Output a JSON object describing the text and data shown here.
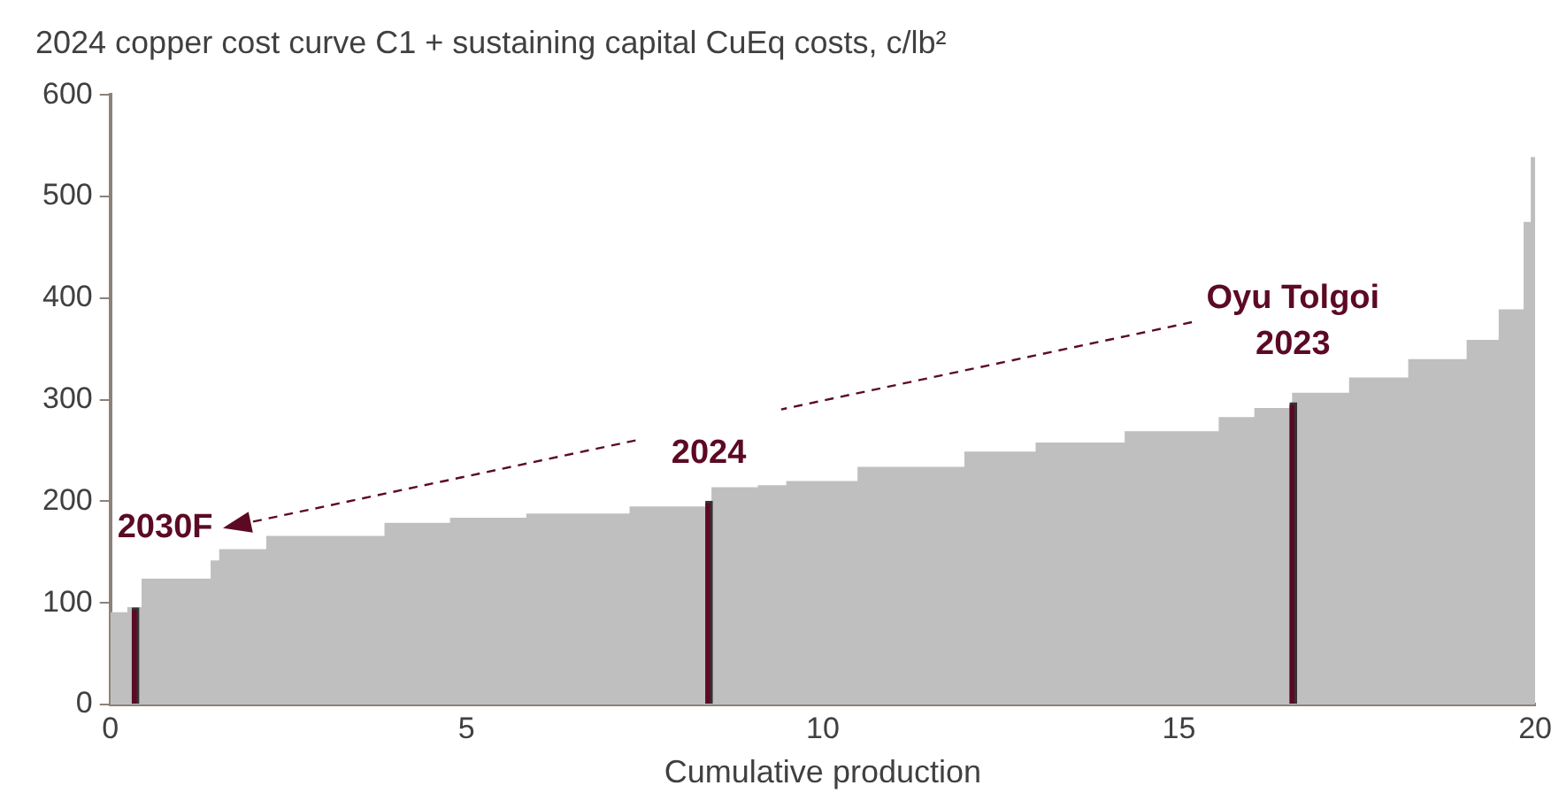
{
  "chart_data": {
    "type": "area",
    "title": "2024 copper cost curve C1 + sustaining capital CuEq costs, c/lb²",
    "xlabel": "Cumulative production",
    "series": [
      {
        "color": "#bfbfbf",
        "x": [
          0,
          0.25,
          0.25,
          0.45,
          0.45,
          1.42,
          1.42,
          1.54,
          1.54,
          2.2,
          2.2,
          3.86,
          3.86,
          4.78,
          4.78,
          5.85,
          5.85,
          7.3,
          7.3,
          8.45,
          8.45,
          9.1,
          9.1,
          9.5,
          9.5,
          10.5,
          10.5,
          12.0,
          12.0,
          13.0,
          13.0,
          14.25,
          14.25,
          15.57,
          15.57,
          16.07,
          16.07,
          16.6,
          16.6,
          17.4,
          17.4,
          18.23,
          18.23,
          19.05,
          19.05,
          19.5,
          19.5,
          19.85,
          19.85,
          19.95,
          19.95,
          20
        ],
        "values": [
          90,
          90,
          95,
          95,
          123,
          123,
          141,
          141,
          152,
          152,
          165,
          165,
          178,
          178,
          183,
          183,
          187,
          187,
          194,
          194,
          213,
          213,
          215,
          215,
          219,
          219,
          233,
          233,
          248,
          248,
          257,
          257,
          268,
          268,
          282,
          282,
          291,
          291,
          306,
          306,
          321,
          321,
          339,
          339,
          358,
          358,
          388,
          388,
          474,
          474,
          538,
          538
        ]
      },
      {
        "type": "bar",
        "color": "#5c0a24",
        "x": [
          0.35,
          8.4,
          16.6
        ],
        "values": [
          95,
          200,
          297
        ]
      }
    ],
    "xlim": [
      0,
      20
    ],
    "xticks": [
      0,
      5,
      10,
      15,
      20
    ],
    "ylim": [
      0,
      600
    ],
    "yticks": [
      0,
      100,
      200,
      300,
      400,
      500,
      600
    ],
    "grid": false,
    "legend": false,
    "annotations": [
      {
        "text": "2030F",
        "x": 0.35,
        "y": 95
      },
      {
        "text": "2024",
        "x": 8.4,
        "y": 200
      },
      {
        "text": "Oyu Tolgoi\n2023",
        "x": 16.6,
        "y": 297
      }
    ]
  }
}
